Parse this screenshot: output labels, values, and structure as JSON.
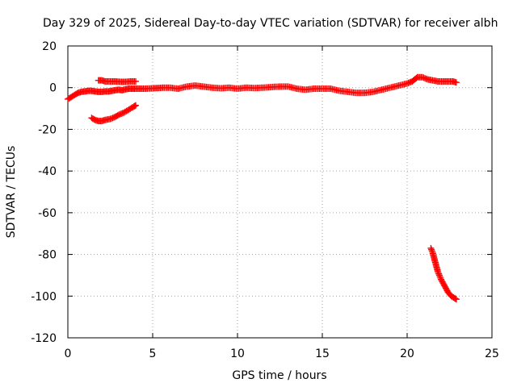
{
  "chart_data": {
    "type": "scatter",
    "title": "Day 329 of 2025, Sidereal Day-to-day VTEC variation (SDTVAR) for receiver albh",
    "xlabel": "GPS time / hours",
    "ylabel": "SDTVAR / TECUs",
    "xlim": [
      0,
      25
    ],
    "ylim": [
      -120,
      20
    ],
    "xticks": [
      "0",
      "5",
      "10",
      "15",
      "20",
      "25"
    ],
    "yticks": [
      "20",
      "0",
      "-20",
      "-40",
      "-60",
      "-80",
      "-100",
      "-120"
    ],
    "grid": true,
    "marker": "plus",
    "color": "#ff0000",
    "series": [
      {
        "name": "main-trace",
        "x": [
          0.0,
          0.2,
          0.4,
          0.6,
          0.8,
          1.0,
          1.2,
          1.4,
          1.6,
          1.8,
          2.0,
          2.2,
          2.4,
          2.6,
          2.8,
          3.0,
          3.2,
          3.4,
          3.6,
          3.8,
          4.0,
          4.3,
          4.6,
          5.0,
          5.3,
          5.6,
          6.0,
          6.5,
          7.0,
          7.5,
          8.0,
          8.5,
          9.0,
          9.5,
          10.0,
          10.5,
          11.0,
          11.5,
          12.0,
          12.5,
          13.0,
          13.5,
          14.0,
          14.5,
          15.0,
          15.5,
          16.0,
          16.5,
          17.0,
          17.5,
          18.0,
          18.5,
          19.0,
          19.5,
          20.0,
          20.3,
          20.6,
          20.9,
          21.2,
          21.5,
          21.8,
          22.1,
          22.4,
          22.7,
          22.9
        ],
        "y": [
          -5.5,
          -4.5,
          -3.5,
          -2.5,
          -2.0,
          -1.8,
          -1.5,
          -1.5,
          -1.8,
          -2.0,
          -2.0,
          -1.8,
          -1.8,
          -1.5,
          -1.2,
          -1.0,
          -1.2,
          -0.8,
          -0.5,
          -0.5,
          -0.5,
          -0.5,
          -0.5,
          -0.3,
          -0.2,
          0.0,
          0.0,
          -0.5,
          0.5,
          1.0,
          0.5,
          0.0,
          -0.3,
          0.0,
          -0.5,
          0.0,
          -0.2,
          0.0,
          0.3,
          0.5,
          0.5,
          -0.5,
          -1.0,
          -0.5,
          -0.5,
          -0.5,
          -1.5,
          -2.0,
          -2.5,
          -2.5,
          -2.0,
          -1.0,
          0.0,
          1.0,
          2.0,
          3.0,
          5.0,
          5.0,
          4.0,
          3.5,
          3.0,
          3.0,
          3.0,
          3.0,
          2.5
        ]
      },
      {
        "name": "upper-arc",
        "x": [
          1.8,
          2.0,
          2.2,
          2.5,
          2.8,
          3.1,
          3.4,
          3.7,
          4.0
        ],
        "y": [
          3.5,
          3.5,
          3.0,
          3.0,
          3.0,
          2.8,
          2.8,
          3.0,
          3.0
        ]
      },
      {
        "name": "descending-arc",
        "x": [
          1.4,
          1.6,
          1.8,
          2.0,
          2.2,
          2.5,
          2.8,
          3.0,
          3.3,
          3.6,
          3.9,
          4.0
        ],
        "y": [
          -14.5,
          -15.5,
          -16.0,
          -16.0,
          -15.5,
          -15.0,
          -14.0,
          -13.0,
          -12.0,
          -10.5,
          -9.0,
          -8.5
        ]
      },
      {
        "name": "plunge",
        "x": [
          21.4,
          21.5,
          21.6,
          21.7,
          21.8,
          21.9,
          22.0,
          22.2,
          22.4,
          22.6,
          22.8,
          22.9
        ],
        "y": [
          -77.0,
          -79.0,
          -82.0,
          -85.0,
          -88.0,
          -90.0,
          -92.0,
          -95.0,
          -98.0,
          -100.0,
          -101.0,
          -101.5
        ]
      }
    ]
  }
}
